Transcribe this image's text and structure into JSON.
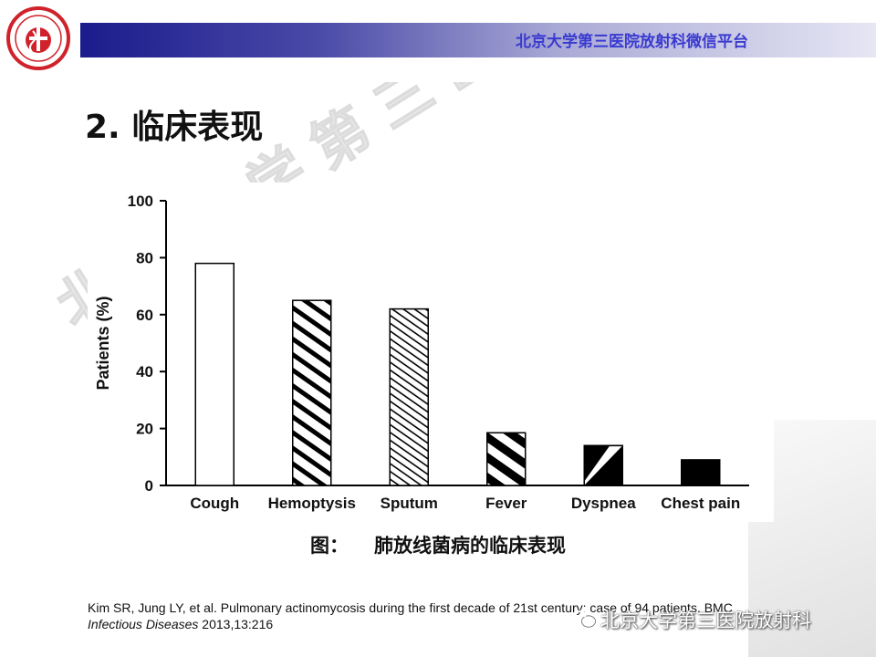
{
  "header": {
    "title": "北京大学第三医院放射科微信平台"
  },
  "slide": {
    "section_title": "2. 临床表现"
  },
  "watermark": {
    "text": "北京大学第三医院放射科微信平台"
  },
  "chart_data": {
    "type": "bar",
    "categories": [
      "Cough",
      "Hemoptysis",
      "Sputum",
      "Fever",
      "Dyspnea",
      "Chest pain"
    ],
    "values": [
      78,
      65,
      62,
      18.5,
      14,
      9
    ],
    "patterns": [
      "white",
      "wide-diagonal",
      "fine-diagonal",
      "thick-diagonal",
      "half-black",
      "solid-black"
    ],
    "ylabel": "Patients (%)",
    "ylim": [
      0,
      100
    ],
    "yticks": [
      0,
      20,
      40,
      60,
      80,
      100
    ],
    "grid": false
  },
  "figure": {
    "caption_prefix": "图：",
    "caption": "肺放线菌病的临床表现"
  },
  "reference": {
    "text_main": "Kim SR, Jung LY, et al. Pulmonary actinomycosis during the first decade of 21st century: case of 94 patients. BMC",
    "text_italic": "Infectious Diseases",
    "text_tail": " 2013,13:216"
  },
  "wechat": {
    "label": "北京大学第三医院放射科"
  },
  "colors": {
    "header_text": "#3a3ad0",
    "header_start": "#1b1b8c",
    "bar_stroke": "#000000"
  }
}
